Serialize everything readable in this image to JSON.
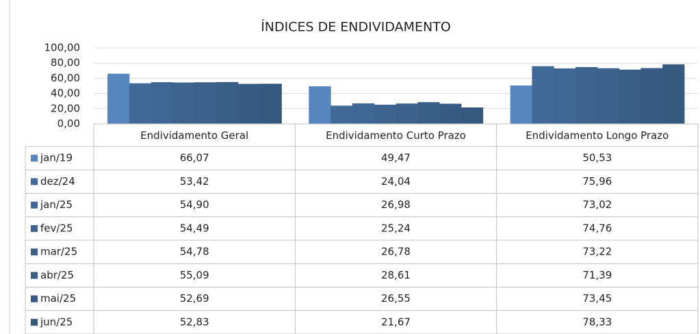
{
  "chart_data": {
    "type": "bar",
    "title": "ÍNDICES DE ENDIVIDAMENTO",
    "categories": [
      "Endividamento Geral",
      "Endividamento Curto Prazo",
      "Endividamento Longo Prazo"
    ],
    "ylim": [
      0,
      100
    ],
    "yticks": [
      {
        "value": 0,
        "label": "0,00"
      },
      {
        "value": 20,
        "label": "20,00"
      },
      {
        "value": 40,
        "label": "40,00"
      },
      {
        "value": 60,
        "label": "60,00"
      },
      {
        "value": 80,
        "label": "80,00"
      },
      {
        "value": 100,
        "label": "100,00"
      }
    ],
    "grid": true,
    "series": [
      {
        "name": "jan/19",
        "color": "#5586bd",
        "values": [
          66.07,
          49.47,
          50.53
        ],
        "value_labels": [
          "66,07",
          "49,47",
          "50,53"
        ]
      },
      {
        "name": "dez/24",
        "color": "#416a99",
        "values": [
          53.42,
          24.04,
          75.96
        ],
        "value_labels": [
          "53,42",
          "24,04",
          "75,96"
        ]
      },
      {
        "name": "jan/25",
        "color": "#3f6795",
        "values": [
          54.9,
          26.98,
          73.02
        ],
        "value_labels": [
          "54,90",
          "26,98",
          "73,02"
        ]
      },
      {
        "name": "fev/25",
        "color": "#3d6491",
        "values": [
          54.49,
          25.24,
          74.76
        ],
        "value_labels": [
          "54,49",
          "25,24",
          "74,76"
        ]
      },
      {
        "name": "mar/25",
        "color": "#3b618c",
        "values": [
          54.78,
          26.78,
          73.22
        ],
        "value_labels": [
          "54,78",
          "26,78",
          "73,22"
        ]
      },
      {
        "name": "abr/25",
        "color": "#395e88",
        "values": [
          55.09,
          28.61,
          71.39
        ],
        "value_labels": [
          "55,09",
          "28,61",
          "71,39"
        ]
      },
      {
        "name": "mai/25",
        "color": "#375b84",
        "values": [
          52.69,
          26.55,
          73.45
        ],
        "value_labels": [
          "52,69",
          "26,55",
          "73,45"
        ]
      },
      {
        "name": "jun/25",
        "color": "#35587f",
        "values": [
          52.83,
          21.67,
          78.33
        ],
        "value_labels": [
          "52,83",
          "21,67",
          "78,33"
        ]
      }
    ]
  }
}
